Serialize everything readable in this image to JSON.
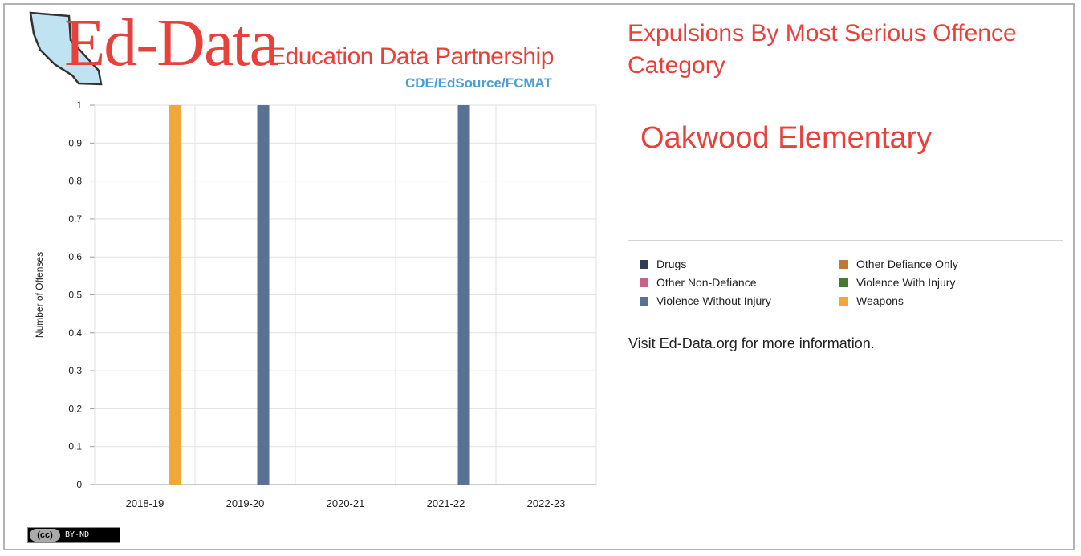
{
  "logo": {
    "wordmark": "Ed-Data",
    "subtitle": "Education Data Partnership",
    "partners": "CDE/EdSource/FCMAT"
  },
  "title": "Expulsions By Most Serious Offence Category",
  "school": "Oakwood Elementary",
  "legend": [
    {
      "label": "Drugs",
      "color": "#2f3e54"
    },
    {
      "label": "Other Defiance Only",
      "color": "#c07832"
    },
    {
      "label": "Other Non-Defiance",
      "color": "#c8608a"
    },
    {
      "label": "Violence With Injury",
      "color": "#4a7a2c"
    },
    {
      "label": "Violence Without Injury",
      "color": "#5a7196"
    },
    {
      "label": "Weapons",
      "color": "#f0a83a"
    }
  ],
  "visit_text": "Visit Ed-Data.org for more information.",
  "license": {
    "cc": "(cc)",
    "terms": "BY-ND"
  },
  "chart_data": {
    "type": "bar",
    "ylabel": "Number of Offenses",
    "xlabel": "",
    "ylim": [
      0,
      1
    ],
    "yticks": [
      "0",
      "0.1",
      "0.2",
      "0.3",
      "0.4",
      "0.5",
      "0.6",
      "0.7",
      "0.8",
      "0.9",
      "1"
    ],
    "grid": true,
    "categories": [
      "2018-19",
      "2019-20",
      "2020-21",
      "2021-22",
      "2022-23"
    ],
    "series": [
      {
        "name": "Drugs",
        "values": [
          0,
          0,
          0,
          0,
          0
        ],
        "color": "#2f3e54"
      },
      {
        "name": "Other Defiance Only",
        "values": [
          0,
          0,
          0,
          0,
          0
        ],
        "color": "#c07832"
      },
      {
        "name": "Other Non-Defiance",
        "values": [
          0,
          0,
          0,
          0,
          0
        ],
        "color": "#c8608a"
      },
      {
        "name": "Violence With Injury",
        "values": [
          0,
          0,
          0,
          0,
          0
        ],
        "color": "#4a7a2c"
      },
      {
        "name": "Violence Without Injury",
        "values": [
          0,
          1,
          0,
          1,
          0
        ],
        "color": "#5a7196"
      },
      {
        "name": "Weapons",
        "values": [
          1,
          0,
          0,
          0,
          0
        ],
        "color": "#f0a83a"
      }
    ]
  }
}
